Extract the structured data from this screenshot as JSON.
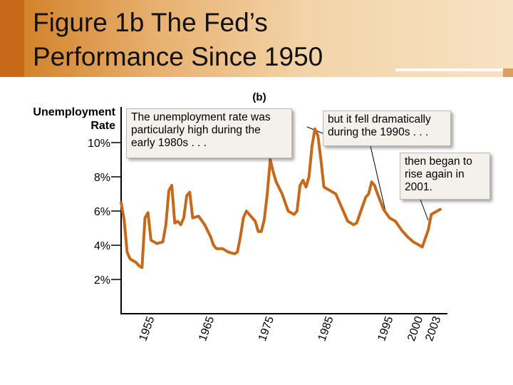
{
  "title_line1": "Figure 1b  The Fed’s",
  "title_line2": "Performance Since 1950",
  "colors": {
    "line": "#c56a1c",
    "title_band": "#d9954a",
    "axis": "#000000"
  },
  "callouts": {
    "early_1980s": "The unemployment rate was particularly high during the early 1980s . . .",
    "nineties": "but it fell dramatically during the 1990s . . .",
    "y2001": "then began to rise again in 2001."
  },
  "chart_data": {
    "type": "line",
    "panel_label": "(b)",
    "ylabel_line1": "Unemployment",
    "ylabel_line2": "Rate",
    "ylim": [
      0,
      11
    ],
    "xlim": [
      1950,
      2004
    ],
    "yticks": [
      {
        "value": 10,
        "label": "10%"
      },
      {
        "value": 8,
        "label": "8%"
      },
      {
        "value": 6,
        "label": "6%"
      },
      {
        "value": 4,
        "label": "4%"
      },
      {
        "value": 2,
        "label": "2%"
      }
    ],
    "xticks": [
      {
        "value": 1955,
        "label": "1955"
      },
      {
        "value": 1965,
        "label": "1965"
      },
      {
        "value": 1975,
        "label": "1975"
      },
      {
        "value": 1985,
        "label": "1985"
      },
      {
        "value": 1995,
        "label": "1995"
      },
      {
        "value": 2000,
        "label": "2000"
      },
      {
        "value": 2003,
        "label": "2003"
      }
    ],
    "grid": false,
    "series": [
      {
        "x": [
          1950.0,
          1950.5,
          1951.0,
          1951.5,
          1952.0,
          1952.5,
          1953.0,
          1953.5,
          1954.0,
          1954.5,
          1955.0,
          1955.5,
          1956.0,
          1957.0,
          1957.5,
          1958.0,
          1958.5,
          1959.0,
          1959.5,
          1960.0,
          1960.5,
          1961.0,
          1961.5,
          1962.0,
          1963.0,
          1964.0,
          1965.0,
          1965.5,
          1966.0,
          1967.0,
          1968.0,
          1969.0,
          1969.5,
          1970.0,
          1970.5,
          1971.0,
          1972.0,
          1972.5,
          1973.0,
          1973.5,
          1974.0,
          1974.5,
          1975.0,
          1975.5,
          1976.0,
          1977.0,
          1978.0,
          1979.0,
          1979.5,
          1980.0,
          1980.5,
          1981.0,
          1981.5,
          1982.0,
          1982.5,
          1983.0,
          1983.5,
          1984.0,
          1985.0,
          1986.0,
          1987.0,
          1988.0,
          1989.0,
          1989.5,
          1990.0,
          1990.5,
          1991.0,
          1991.5,
          1992.0,
          1992.5,
          1993.0,
          1994.0,
          1995.0,
          1996.0,
          1997.0,
          1998.0,
          1999.0,
          2000.0,
          2000.5,
          2001.0,
          2001.5,
          2002.0,
          2002.5,
          2003.0,
          2003.5
        ],
        "y": [
          6.5,
          5.5,
          3.6,
          3.2,
          3.1,
          3.0,
          2.8,
          2.7,
          5.6,
          5.9,
          4.3,
          4.2,
          4.1,
          4.2,
          5.2,
          7.2,
          7.5,
          5.3,
          5.4,
          5.2,
          5.6,
          6.9,
          7.1,
          5.6,
          5.7,
          5.2,
          4.5,
          4.0,
          3.8,
          3.8,
          3.6,
          3.5,
          3.6,
          4.5,
          5.6,
          6.0,
          5.6,
          5.4,
          4.8,
          4.8,
          5.5,
          7.0,
          9.0,
          8.3,
          7.7,
          7.0,
          6.0,
          5.8,
          6.0,
          7.5,
          7.8,
          7.4,
          8.0,
          9.8,
          10.8,
          10.4,
          9.0,
          7.4,
          7.2,
          7.0,
          6.2,
          5.4,
          5.2,
          5.3,
          5.8,
          6.3,
          6.8,
          7.0,
          7.7,
          7.5,
          7.0,
          6.1,
          5.6,
          5.4,
          4.9,
          4.5,
          4.2,
          4.0,
          3.9,
          4.4,
          4.9,
          5.8,
          5.9,
          6.0,
          6.1
        ]
      }
    ]
  }
}
